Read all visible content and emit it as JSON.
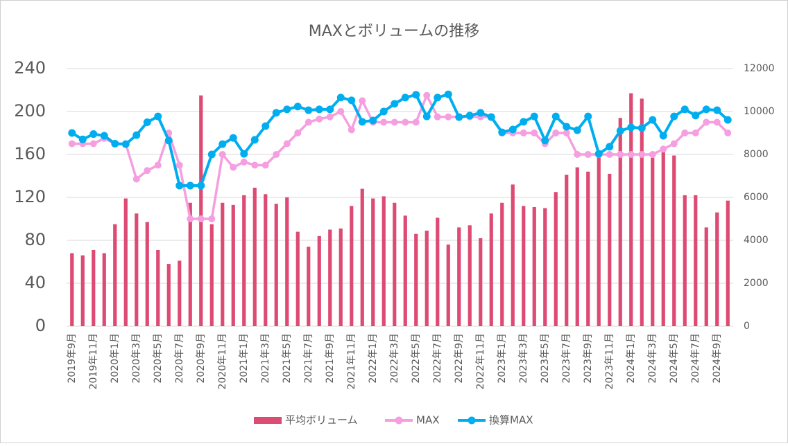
{
  "chart_data": {
    "type": "bar_line_combo",
    "title": "MAXとボリュームの推移",
    "categories": [
      "2019年9月",
      null,
      "2019年11月",
      null,
      "2020年1月",
      null,
      "2020年3月",
      null,
      "2020年5月",
      null,
      "2020年7月",
      null,
      "2020年9月",
      null,
      "2020年11月",
      null,
      "2021年1月",
      null,
      "2021年3月",
      null,
      "2021年5月",
      null,
      "2021年7月",
      null,
      "2021年9月",
      null,
      "2021年11月",
      null,
      "2022年1月",
      null,
      "2022年3月",
      null,
      "2022年5月",
      null,
      "2022年7月",
      null,
      "2022年9月",
      null,
      "2022年11月",
      null,
      "2023年1月",
      null,
      "2023年3月",
      null,
      "2023年5月",
      null,
      "2023年7月",
      null,
      "2023年9月",
      null,
      "2023年11月",
      null,
      "2024年1月",
      null,
      "2024年3月",
      null,
      "2024年5月",
      null,
      "2024年7月",
      null,
      "2024年9月",
      null
    ],
    "series": [
      {
        "name": "平均ボリューム",
        "type": "bar",
        "color": "#dd4a74",
        "axis": "y",
        "values": [
          68,
          66,
          71,
          68,
          95,
          119,
          105,
          97,
          71,
          58,
          61,
          115,
          215,
          95,
          115,
          113,
          122,
          129,
          123,
          114,
          120,
          88,
          74,
          84,
          90,
          91,
          112,
          128,
          119,
          121,
          115,
          103,
          86,
          89,
          101,
          76,
          92,
          94,
          82,
          105,
          115,
          132,
          112,
          111,
          110,
          125,
          141,
          148,
          144,
          160,
          142,
          194,
          217,
          212,
          157,
          165,
          159,
          122,
          122,
          92,
          106,
          117
        ]
      },
      {
        "name": "MAX",
        "type": "line",
        "color": "#f59ee0",
        "axis": "y",
        "values": [
          170,
          170,
          170,
          175,
          170,
          170,
          137,
          145,
          150,
          180,
          150,
          100,
          100,
          100,
          160,
          148,
          153,
          150,
          150,
          160,
          170,
          180,
          190,
          193,
          195,
          200,
          183,
          210,
          190,
          190,
          190,
          190,
          190,
          215,
          195,
          195,
          195,
          195,
          195,
          195,
          180,
          180,
          180,
          180,
          170,
          180,
          180,
          160,
          160,
          160,
          160,
          160,
          160,
          160,
          160,
          165,
          170,
          180,
          180,
          190,
          190,
          180
        ]
      },
      {
        "name": "換算MAX",
        "type": "line",
        "color": "#00aeef",
        "axis": "y2",
        "values": [
          9000,
          8700,
          8950,
          8870,
          8500,
          8480,
          8900,
          9500,
          9770,
          8650,
          6550,
          6550,
          6550,
          8000,
          8480,
          8770,
          8030,
          8680,
          9320,
          9940,
          10100,
          10230,
          10060,
          10100,
          10100,
          10650,
          10520,
          9520,
          9580,
          10000,
          10360,
          10650,
          10780,
          9770,
          10650,
          10800,
          9740,
          9810,
          9940,
          9740,
          9030,
          9160,
          9520,
          9770,
          8650,
          9770,
          9290,
          9130,
          9770,
          8030,
          8360,
          9100,
          9260,
          9230,
          9610,
          8870,
          9770,
          10100,
          9810,
          10100,
          10060,
          9610
        ]
      }
    ],
    "ylim": [
      0,
      240
    ],
    "yticks": [
      0,
      40,
      80,
      120,
      160,
      200,
      240
    ],
    "y2lim": [
      0,
      12000
    ],
    "y2ticks": [
      0,
      2000,
      4000,
      6000,
      8000,
      10000,
      12000
    ],
    "grid": true,
    "legend": "bottom"
  }
}
